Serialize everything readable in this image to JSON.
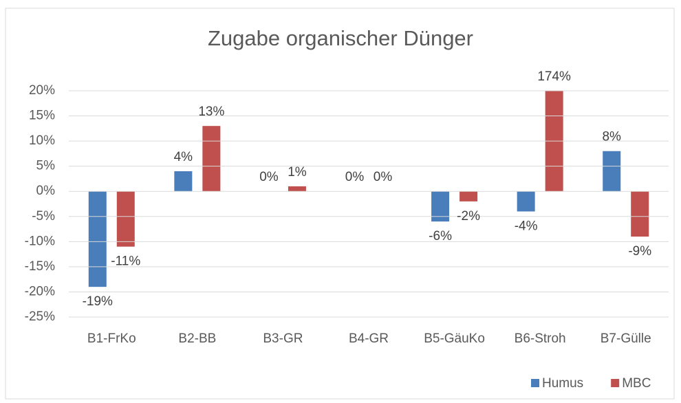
{
  "chart_data": {
    "type": "bar",
    "title": "Zugabe organischer Dünger",
    "categories": [
      "B1-FrKo",
      "B2-BB",
      "B3-GR",
      "B4-GR",
      "B5-GäuKo",
      "B6-Stroh",
      "B7-Gülle"
    ],
    "series": [
      {
        "name": "Humus",
        "color": "#4a7ebb",
        "values": [
          -19,
          4,
          0,
          0,
          -6,
          -4,
          8
        ],
        "value_labels": [
          "-19%",
          "4%",
          "0%",
          "0%",
          "-6%",
          "-4%",
          "8%"
        ]
      },
      {
        "name": "MBC",
        "color": "#c0504d",
        "values": [
          -11,
          13,
          1,
          0,
          -2,
          174,
          -9
        ],
        "value_labels": [
          "-11%",
          "13%",
          "1%",
          "0%",
          "-2%",
          "174%",
          "-9%"
        ]
      }
    ],
    "ylim": [
      -25,
      20
    ],
    "yticks": [
      {
        "value": -25,
        "label": "-25%"
      },
      {
        "value": -20,
        "label": "-20%"
      },
      {
        "value": -15,
        "label": "-15%"
      },
      {
        "value": -10,
        "label": "-10%"
      },
      {
        "value": -5,
        "label": "-5%"
      },
      {
        "value": 0,
        "label": "0%"
      },
      {
        "value": 5,
        "label": "5%"
      },
      {
        "value": 10,
        "label": "10%"
      },
      {
        "value": 15,
        "label": "15%"
      },
      {
        "value": 20,
        "label": "20%"
      }
    ],
    "grid": true,
    "legend": "bottom-right"
  }
}
